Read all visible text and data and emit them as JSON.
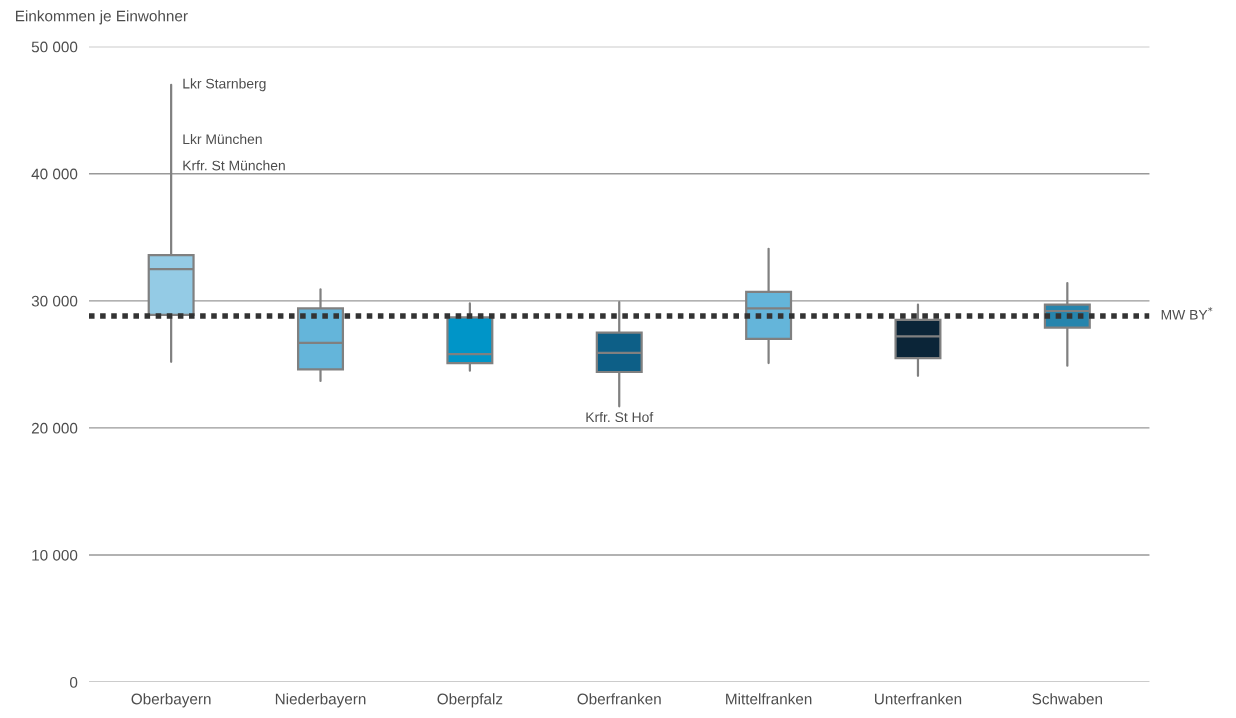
{
  "chart_data": {
    "type": "box",
    "ylabel": "Einkommen je Einwohner",
    "categories": [
      "Oberbayern",
      "Niederbayern",
      "Oberpfalz",
      "Oberfranken",
      "Mittelfranken",
      "Unterfranken",
      "Schwaben"
    ],
    "boxes": [
      {
        "low": 25200,
        "q1": 28900,
        "median": 32500,
        "q3": 33600,
        "high": 47000
      },
      {
        "low": 23700,
        "q1": 24600,
        "median": 26700,
        "q3": 29400,
        "high": 30900
      },
      {
        "low": 24500,
        "q1": 25100,
        "median": 25800,
        "q3": 28700,
        "high": 29800
      },
      {
        "low": 21700,
        "q1": 24400,
        "median": 25900,
        "q3": 27500,
        "high": 29900
      },
      {
        "low": 25100,
        "q1": 27000,
        "median": 29400,
        "q3": 30700,
        "high": 34100
      },
      {
        "low": 24100,
        "q1": 25500,
        "median": 27200,
        "q3": 28500,
        "high": 29700
      },
      {
        "low": 24900,
        "q1": 27900,
        "median": 29200,
        "q3": 29700,
        "high": 31400
      }
    ],
    "colors": [
      "#94cbe5",
      "#64b5da",
      "#0095c8",
      "#0d5f87",
      "#64b5da",
      "#0b2538",
      "#2685ad"
    ],
    "ylim": [
      0,
      50000
    ],
    "yticks": [
      {
        "value": 0,
        "label": "0"
      },
      {
        "value": 10000,
        "label": "10 000"
      },
      {
        "value": 20000,
        "label": "20 000"
      },
      {
        "value": 30000,
        "label": "30 000"
      },
      {
        "value": 40000,
        "label": "40 000"
      },
      {
        "value": 50000,
        "label": "50 000"
      }
    ],
    "grid": "y",
    "ref_lines": [
      {
        "axis": "y",
        "value": 28800,
        "label": "MW BY$^{*}$",
        "color": "#333333",
        "line_style": "dotted"
      }
    ],
    "annotations": [
      {
        "text": "Lkr Starnberg",
        "x": "Oberbayern",
        "y": 47000
      },
      "Lkr München",
      "Krfr. St München",
      {
        "text": "Krfr. St Hof",
        "x": "Oberfranken",
        "y": 21700
      }
    ]
  }
}
